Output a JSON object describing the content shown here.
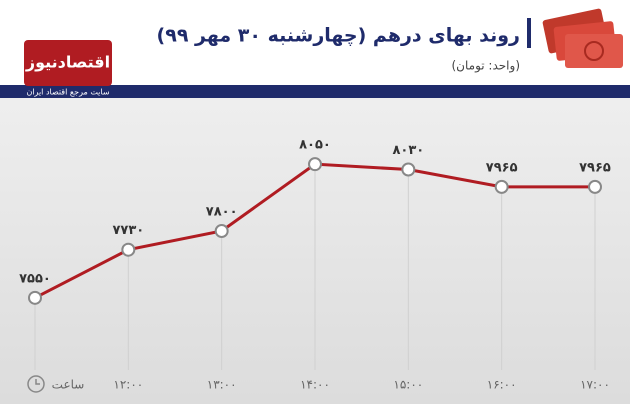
{
  "brand": {
    "name": "اقتصادنیوز",
    "tagline": "سایت مرجع اقتصاد ایران"
  },
  "chart_data": {
    "type": "line",
    "title": "روند بهای درهم (چهارشنبه ۳۰ مهر ۹۹)",
    "subtitle": "(واحد: تومان)",
    "x_label": "ساعت",
    "categories": [
      null,
      "۱۲:۰۰",
      "۱۳:۰۰",
      "۱۴:۰۰",
      "۱۵:۰۰",
      "۱۶:۰۰",
      "۱۷:۰۰"
    ],
    "series": [
      {
        "name": "درهم",
        "color": "#b01c22",
        "values": [
          7550,
          7730,
          7800,
          8050,
          8030,
          7965,
          7965
        ],
        "value_labels": [
          "۷۵۵۰",
          "۷۷۳۰",
          "۷۸۰۰",
          "۸۰۵۰",
          "۸۰۳۰",
          "۷۹۶۵",
          "۷۹۶۵"
        ]
      }
    ],
    "ylim": [
      7280,
      8290
    ]
  }
}
